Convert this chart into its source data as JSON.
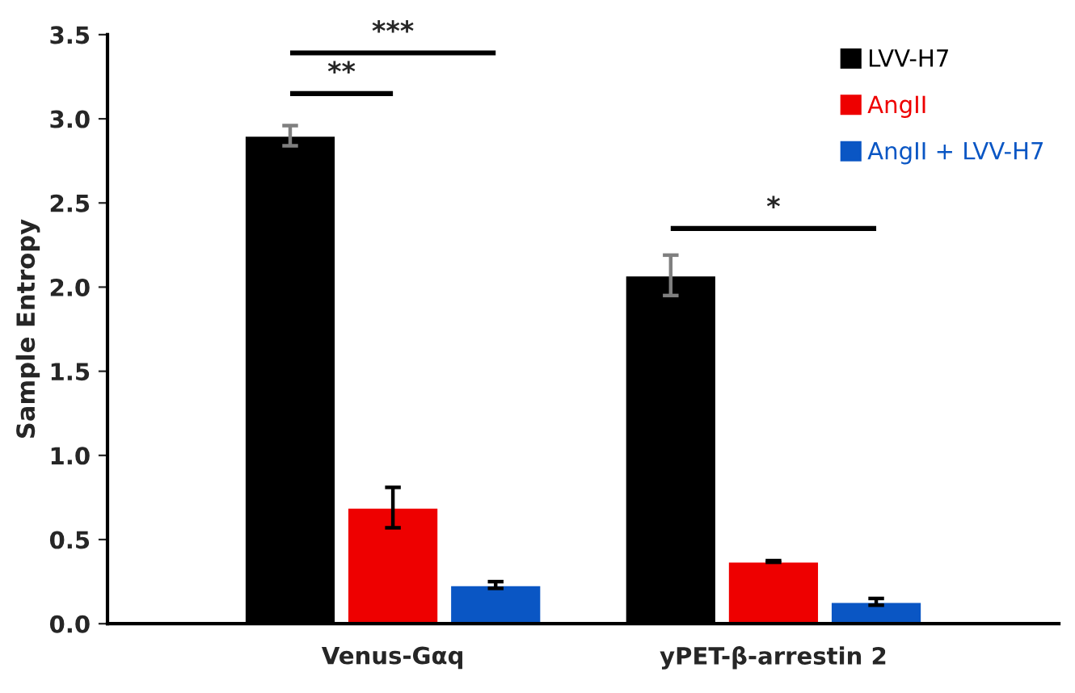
{
  "chart_data": {
    "type": "bar",
    "ylabel": "Sample Entropy",
    "categories": [
      "Venus-Gαq",
      "yPET-β-arrestin 2"
    ],
    "series": [
      {
        "name": "LVV-H7",
        "color": "#000000",
        "values": [
          2.9,
          2.07
        ],
        "errors": [
          0.06,
          0.12
        ]
      },
      {
        "name": "AngII",
        "color": "#ee0000",
        "values": [
          0.69,
          0.37
        ],
        "errors": [
          0.12,
          0.005
        ]
      },
      {
        "name": "AngII + LVV-H7",
        "color": "#0a56c4",
        "values": [
          0.23,
          0.13
        ],
        "errors": [
          0.02,
          0.02
        ]
      }
    ],
    "ylim": [
      0,
      3.5
    ],
    "yticks": [
      {
        "value": 0,
        "label": "0.0"
      },
      {
        "value": 0.5,
        "label": "0.5"
      },
      {
        "value": 1,
        "label": "1.0"
      },
      {
        "value": 1.5,
        "label": "1.5"
      },
      {
        "value": 2,
        "label": "2.0"
      },
      {
        "value": 2.5,
        "label": "2.5"
      },
      {
        "value": 3,
        "label": "3.0"
      },
      {
        "value": 3.5,
        "label": "3.5"
      }
    ],
    "annotations": [
      "**",
      "***",
      "*"
    ],
    "legend": "top right",
    "grid": false
  }
}
